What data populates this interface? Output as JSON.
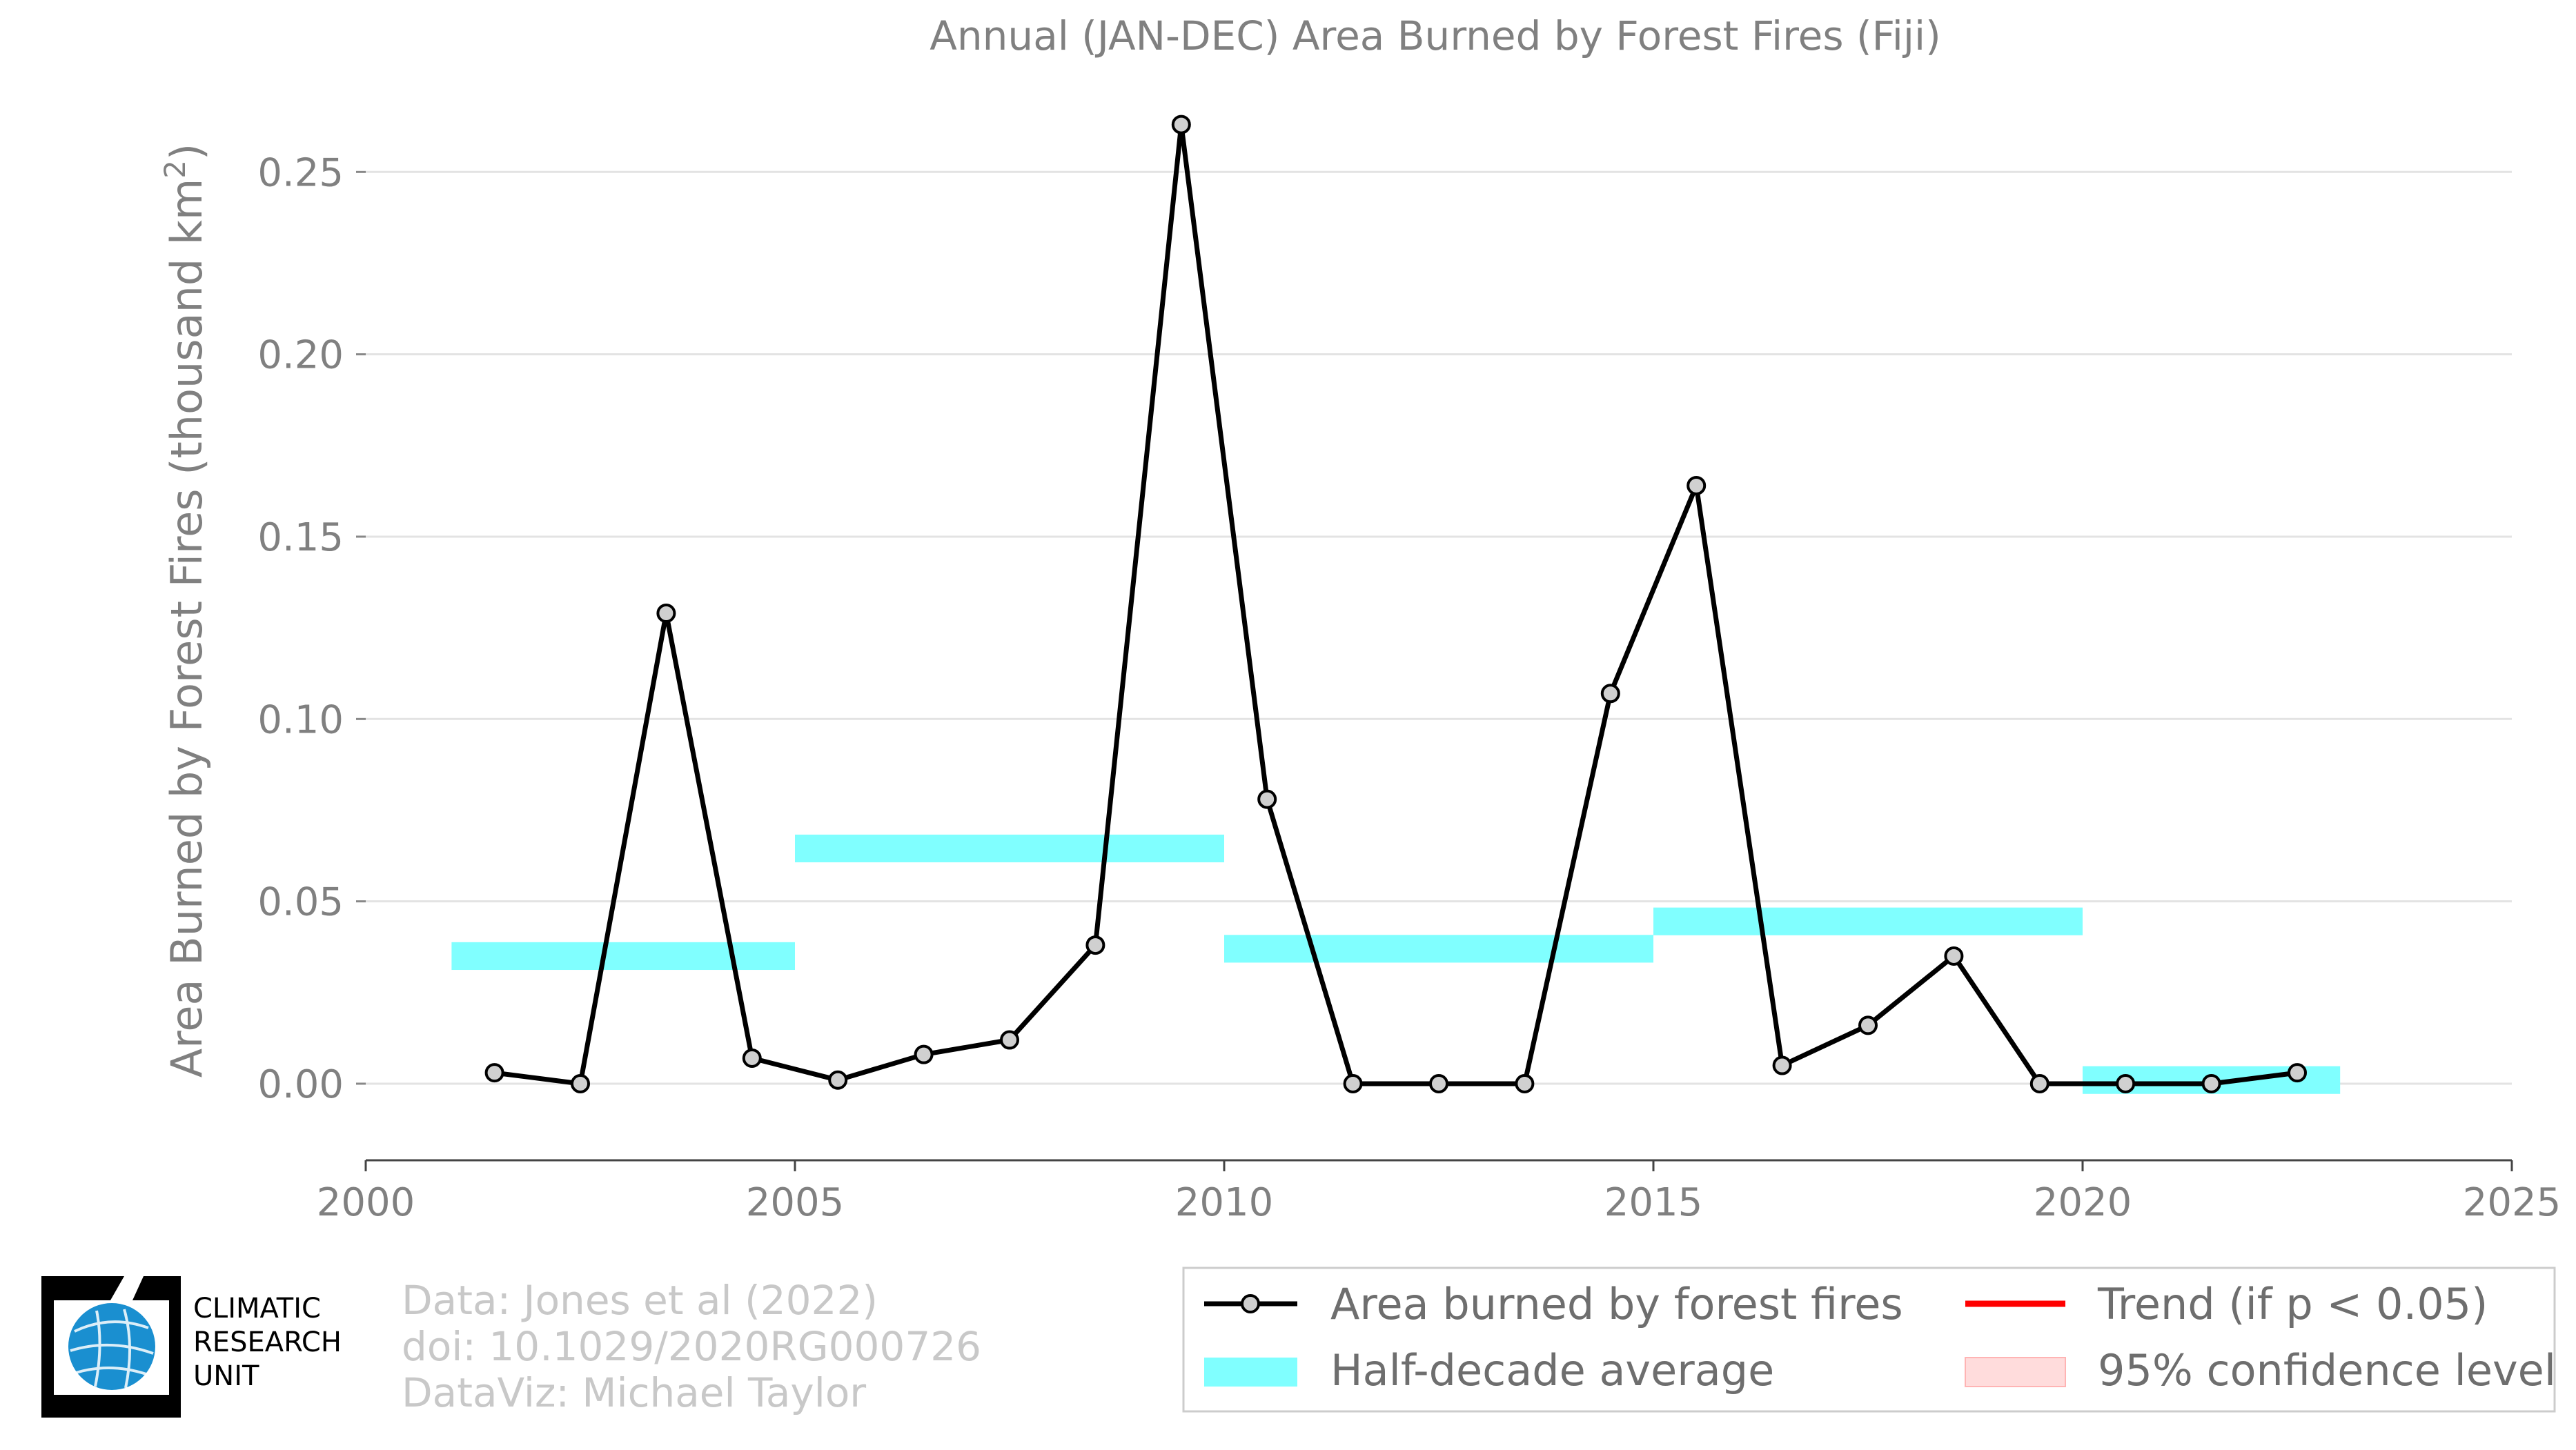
{
  "chart_data": {
    "type": "line",
    "title": "Annual (JAN-DEC) Area Burned by Forest Fires (Fiji)",
    "xlabel": "",
    "ylabel": "Area Burned by Forest Fires (thousand km",
    "ylabel_sup": "2",
    "ylabel_end": ")",
    "xlim": [
      2000,
      2025
    ],
    "ylim": [
      -0.021,
      0.265
    ],
    "x_ticks": [
      2000,
      2005,
      2010,
      2015,
      2020,
      2025
    ],
    "x_tick_labels": [
      "2000",
      "2005",
      "2010",
      "2015",
      "2020",
      "2025"
    ],
    "y_ticks": [
      0,
      0.05,
      0.1,
      0.15,
      0.2,
      0.25
    ],
    "y_tick_labels": [
      "0.00",
      "0.05",
      "0.10",
      "0.15",
      "0.20",
      "0.25"
    ],
    "grid": "horizontal",
    "series": [
      {
        "name": "Area burned by forest fires",
        "color": "#000000",
        "marker_fill": "#d0d0d0",
        "x": [
          2001.5,
          2002.5,
          2003.5,
          2004.5,
          2005.5,
          2006.5,
          2007.5,
          2008.5,
          2009.5,
          2010.5,
          2011.5,
          2012.5,
          2013.5,
          2014.5,
          2015.5,
          2016.5,
          2017.5,
          2018.5,
          2019.5,
          2020.5,
          2021.5,
          2022.5
        ],
        "values": [
          0.003,
          0.0,
          0.129,
          0.007,
          0.001,
          0.008,
          0.012,
          0.038,
          0.263,
          0.078,
          0.0,
          0.0,
          0.0,
          0.107,
          0.164,
          0.005,
          0.016,
          0.035,
          0.0,
          0.0,
          0.0,
          0.003
        ]
      }
    ],
    "half_decade_average": {
      "name": "Half-decade average",
      "color": "#80ffff",
      "segments": [
        {
          "x_start": 2001,
          "x_end": 2005,
          "value": 0.035
        },
        {
          "x_start": 2005,
          "x_end": 2010,
          "value": 0.0645
        },
        {
          "x_start": 2010,
          "x_end": 2015,
          "value": 0.037
        },
        {
          "x_start": 2015,
          "x_end": 2020,
          "value": 0.0445
        },
        {
          "x_start": 2020,
          "x_end": 2023,
          "value": 0.001
        }
      ]
    },
    "legend": {
      "placement": "bottom-right",
      "items": [
        {
          "label": "Area burned by forest fires",
          "kind": "line-marker",
          "color": "#000000"
        },
        {
          "label": "Trend (if p < 0.05)",
          "kind": "line",
          "color": "#ff0000"
        },
        {
          "label": "Half-decade average",
          "kind": "band",
          "color": "#80ffff"
        },
        {
          "label": "95% confidence level",
          "kind": "band",
          "color": "#ffdcdc"
        }
      ]
    }
  },
  "credits": {
    "line1": "Data: Jones et al (2022)",
    "line2": "doi: 10.1029/2020RG000726",
    "line3": "DataViz: Michael Taylor"
  },
  "logo": {
    "line1": "CLIMATIC",
    "line2": "RESEARCH",
    "line3": "UNIT",
    "globe_color": "#1a8fd0"
  }
}
